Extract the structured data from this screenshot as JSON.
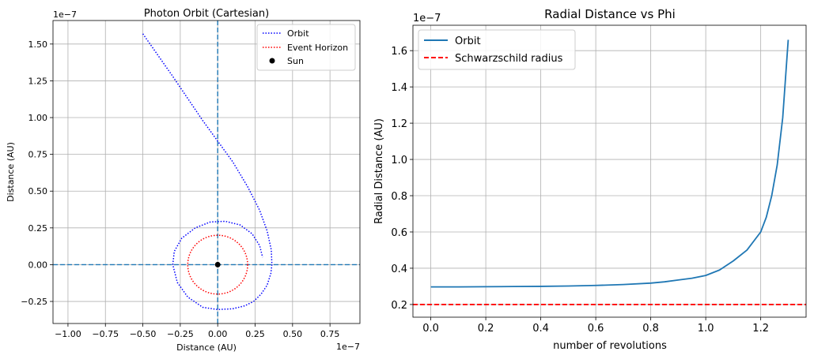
{
  "chart_data": [
    {
      "type": "line",
      "title": "Photon Orbit (Cartesian)",
      "xlabel": "Distance (AU)",
      "ylabel": "Distance (AU)",
      "x_offset_text": "1e−7",
      "y_offset_text": "1e−7",
      "xlim": [
        -1.1,
        0.95
      ],
      "ylim": [
        -0.4,
        1.66
      ],
      "xticks": [
        -1.0,
        -0.75,
        -0.5,
        -0.25,
        0.0,
        0.25,
        0.5,
        0.75
      ],
      "xtick_labels": [
        "−1.00",
        "−0.75",
        "−0.50",
        "−0.25",
        "0.00",
        "0.25",
        "0.50",
        "0.75"
      ],
      "yticks": [
        -0.25,
        0.0,
        0.25,
        0.5,
        0.75,
        1.0,
        1.25,
        1.5
      ],
      "ytick_labels": [
        "−0.25",
        "0.00",
        "0.25",
        "0.50",
        "0.75",
        "1.00",
        "1.25",
        "1.50"
      ],
      "grid": true,
      "legend_position": "top-right",
      "series": [
        {
          "name": "Orbit",
          "color": "#0000ff",
          "style": "dotted",
          "x": [
            -0.5,
            -0.3,
            -0.1,
            0.1,
            0.2,
            0.28,
            0.33,
            0.358,
            0.362,
            0.355,
            0.33,
            0.29,
            0.24,
            0.18,
            0.1,
            0.0,
            -0.1,
            -0.2,
            -0.27,
            -0.3,
            -0.29,
            -0.24,
            -0.15,
            -0.05,
            0.05,
            0.15,
            0.23,
            0.28,
            0.3
          ],
          "y": [
            1.57,
            1.28,
            0.98,
            0.7,
            0.53,
            0.37,
            0.23,
            0.1,
            0.0,
            -0.06,
            -0.14,
            -0.2,
            -0.25,
            -0.28,
            -0.3,
            -0.305,
            -0.29,
            -0.22,
            -0.12,
            0.0,
            0.09,
            0.18,
            0.25,
            0.29,
            0.295,
            0.27,
            0.21,
            0.13,
            0.05
          ]
        },
        {
          "name": "Event Horizon",
          "color": "#ff0000",
          "style": "dotted",
          "circle_radius": 0.2
        },
        {
          "name": "Sun",
          "color": "#000000",
          "style": "marker",
          "x": [
            0
          ],
          "y": [
            0
          ]
        }
      ],
      "reference_lines": {
        "color": "#1f77b4",
        "style": "dashed",
        "x": 0,
        "y": 0
      }
    },
    {
      "type": "line",
      "title": "Radial Distance vs Phi",
      "xlabel": "number of revolutions",
      "ylabel": "Radial Distance (AU)",
      "y_offset_text": "1e−7",
      "xlim": [
        -0.065,
        1.365
      ],
      "ylim": [
        0.13,
        1.74
      ],
      "xticks": [
        0.0,
        0.2,
        0.4,
        0.6,
        0.8,
        1.0,
        1.2
      ],
      "xtick_labels": [
        "0.0",
        "0.2",
        "0.4",
        "0.6",
        "0.8",
        "1.0",
        "1.2"
      ],
      "yticks": [
        0.2,
        0.4,
        0.6,
        0.8,
        1.0,
        1.2,
        1.4,
        1.6
      ],
      "ytick_labels": [
        "0.2",
        "0.4",
        "0.6",
        "0.8",
        "1.0",
        "1.2",
        "1.4",
        "1.6"
      ],
      "grid": true,
      "legend_position": "top-left",
      "series": [
        {
          "name": "Orbit",
          "color": "#1f77b4",
          "style": "solid",
          "x": [
            0.0,
            0.1,
            0.2,
            0.3,
            0.4,
            0.5,
            0.6,
            0.7,
            0.8,
            0.85,
            0.9,
            0.95,
            1.0,
            1.05,
            1.1,
            1.15,
            1.2,
            1.22,
            1.24,
            1.26,
            1.28,
            1.3
          ],
          "y": [
            0.297,
            0.297,
            0.298,
            0.299,
            0.3,
            0.302,
            0.305,
            0.31,
            0.318,
            0.325,
            0.335,
            0.345,
            0.36,
            0.39,
            0.44,
            0.5,
            0.6,
            0.68,
            0.8,
            0.97,
            1.23,
            1.66
          ]
        },
        {
          "name": "Schwarzschild radius",
          "color": "#ff0000",
          "style": "dashed",
          "y_constant": 0.2
        }
      ]
    }
  ]
}
